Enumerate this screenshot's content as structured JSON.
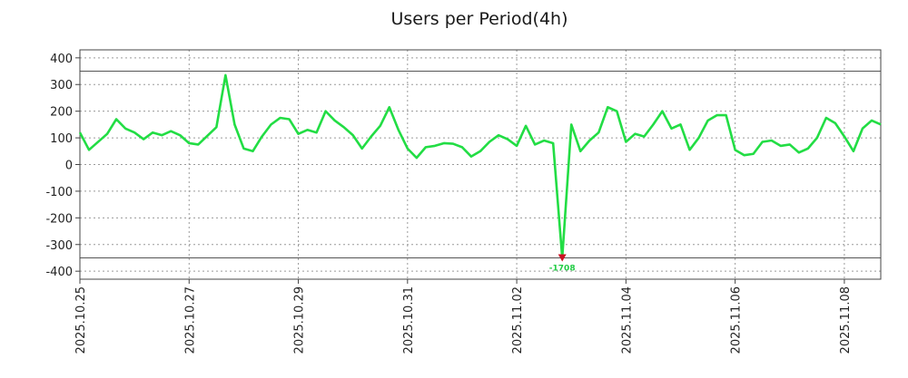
{
  "chart_data": {
    "type": "line",
    "title": "Users per Period(4h)",
    "xlabel": "",
    "ylabel": "",
    "ylim": [
      -430,
      430
    ],
    "grid": true,
    "y_ticks": [
      400,
      300,
      200,
      100,
      0,
      -100,
      -200,
      -300,
      -400
    ],
    "x_range": [
      "2025-10-25 00:00",
      "2025-11-08 16:00"
    ],
    "x_ticks": [
      "2025.10.25",
      "2025.10.27",
      "2025.10.29",
      "2025.10.31",
      "2025.11.02",
      "2025.11.04",
      "2025.11.06",
      "2025.11.08"
    ],
    "reference_lines": [
      350,
      -350
    ],
    "line_color": "#22dd44",
    "marker_color": "#cc1122",
    "annotation": {
      "label": "-1708",
      "x": "2025-11-02 20:00",
      "y": -350,
      "color": "#22cc44"
    },
    "series": [
      {
        "x": [
          "2025-10-25 00:00",
          "2025-10-25 04:00",
          "2025-10-25 12:00",
          "2025-10-25 16:00",
          "2025-10-25 20:00",
          "2025-10-26 00:00",
          "2025-10-26 04:00",
          "2025-10-26 08:00",
          "2025-10-26 12:00",
          "2025-10-26 16:00",
          "2025-10-26 20:00",
          "2025-10-27 00:00",
          "2025-10-27 04:00",
          "2025-10-27 12:00",
          "2025-10-27 16:00",
          "2025-10-27 20:00",
          "2025-10-28 00:00",
          "2025-10-28 04:00",
          "2025-10-28 08:00",
          "2025-10-28 12:00",
          "2025-10-28 16:00",
          "2025-10-28 20:00",
          "2025-10-29 00:00",
          "2025-10-29 04:00",
          "2025-10-29 08:00",
          "2025-10-29 12:00",
          "2025-10-29 16:00",
          "2025-10-29 20:00",
          "2025-10-30 00:00",
          "2025-10-30 04:00",
          "2025-10-30 08:00",
          "2025-10-30 12:00",
          "2025-10-30 16:00",
          "2025-10-30 20:00",
          "2025-10-31 00:00",
          "2025-10-31 04:00",
          "2025-10-31 08:00",
          "2025-10-31 12:00",
          "2025-10-31 16:00",
          "2025-10-31 20:00",
          "2025-11-01 00:00",
          "2025-11-01 04:00",
          "2025-11-01 08:00",
          "2025-11-01 12:00",
          "2025-11-01 16:00",
          "2025-11-01 20:00",
          "2025-11-02 00:00",
          "2025-11-02 04:00",
          "2025-11-02 08:00",
          "2025-11-02 12:00",
          "2025-11-02 16:00",
          "2025-11-02 20:00",
          "2025-11-03 00:00",
          "2025-11-03 04:00",
          "2025-11-03 08:00",
          "2025-11-03 12:00",
          "2025-11-03 16:00",
          "2025-11-03 20:00",
          "2025-11-04 00:00",
          "2025-11-04 04:00",
          "2025-11-04 08:00",
          "2025-11-04 12:00",
          "2025-11-04 16:00",
          "2025-11-04 20:00",
          "2025-11-05 00:00",
          "2025-11-05 04:00",
          "2025-11-05 08:00",
          "2025-11-05 12:00",
          "2025-11-05 16:00",
          "2025-11-05 20:00",
          "2025-11-06 00:00",
          "2025-11-06 04:00",
          "2025-11-06 08:00",
          "2025-11-06 12:00",
          "2025-11-06 16:00",
          "2025-11-06 20:00",
          "2025-11-07 00:00",
          "2025-11-07 04:00",
          "2025-11-07 08:00",
          "2025-11-07 12:00",
          "2025-11-07 16:00",
          "2025-11-07 20:00",
          "2025-11-08 00:00",
          "2025-11-08 04:00",
          "2025-11-08 08:00",
          "2025-11-08 12:00",
          "2025-11-08 16:00"
        ],
        "values": [
          120,
          55,
          115,
          170,
          135,
          120,
          95,
          120,
          110,
          125,
          110,
          80,
          75,
          140,
          335,
          150,
          60,
          50,
          105,
          150,
          175,
          170,
          115,
          130,
          120,
          200,
          165,
          140,
          110,
          60,
          105,
          145,
          215,
          130,
          60,
          25,
          65,
          70,
          80,
          78,
          65,
          30,
          50,
          85,
          110,
          95,
          70,
          145,
          75,
          90,
          80,
          -350,
          150,
          50,
          90,
          120,
          215,
          200,
          85,
          115,
          105,
          150,
          200,
          135,
          150,
          55,
          100,
          165,
          185,
          185,
          55,
          35,
          40,
          85,
          90,
          70,
          75,
          45,
          60,
          100,
          175,
          155,
          105,
          50,
          135,
          165,
          150
        ]
      }
    ]
  }
}
